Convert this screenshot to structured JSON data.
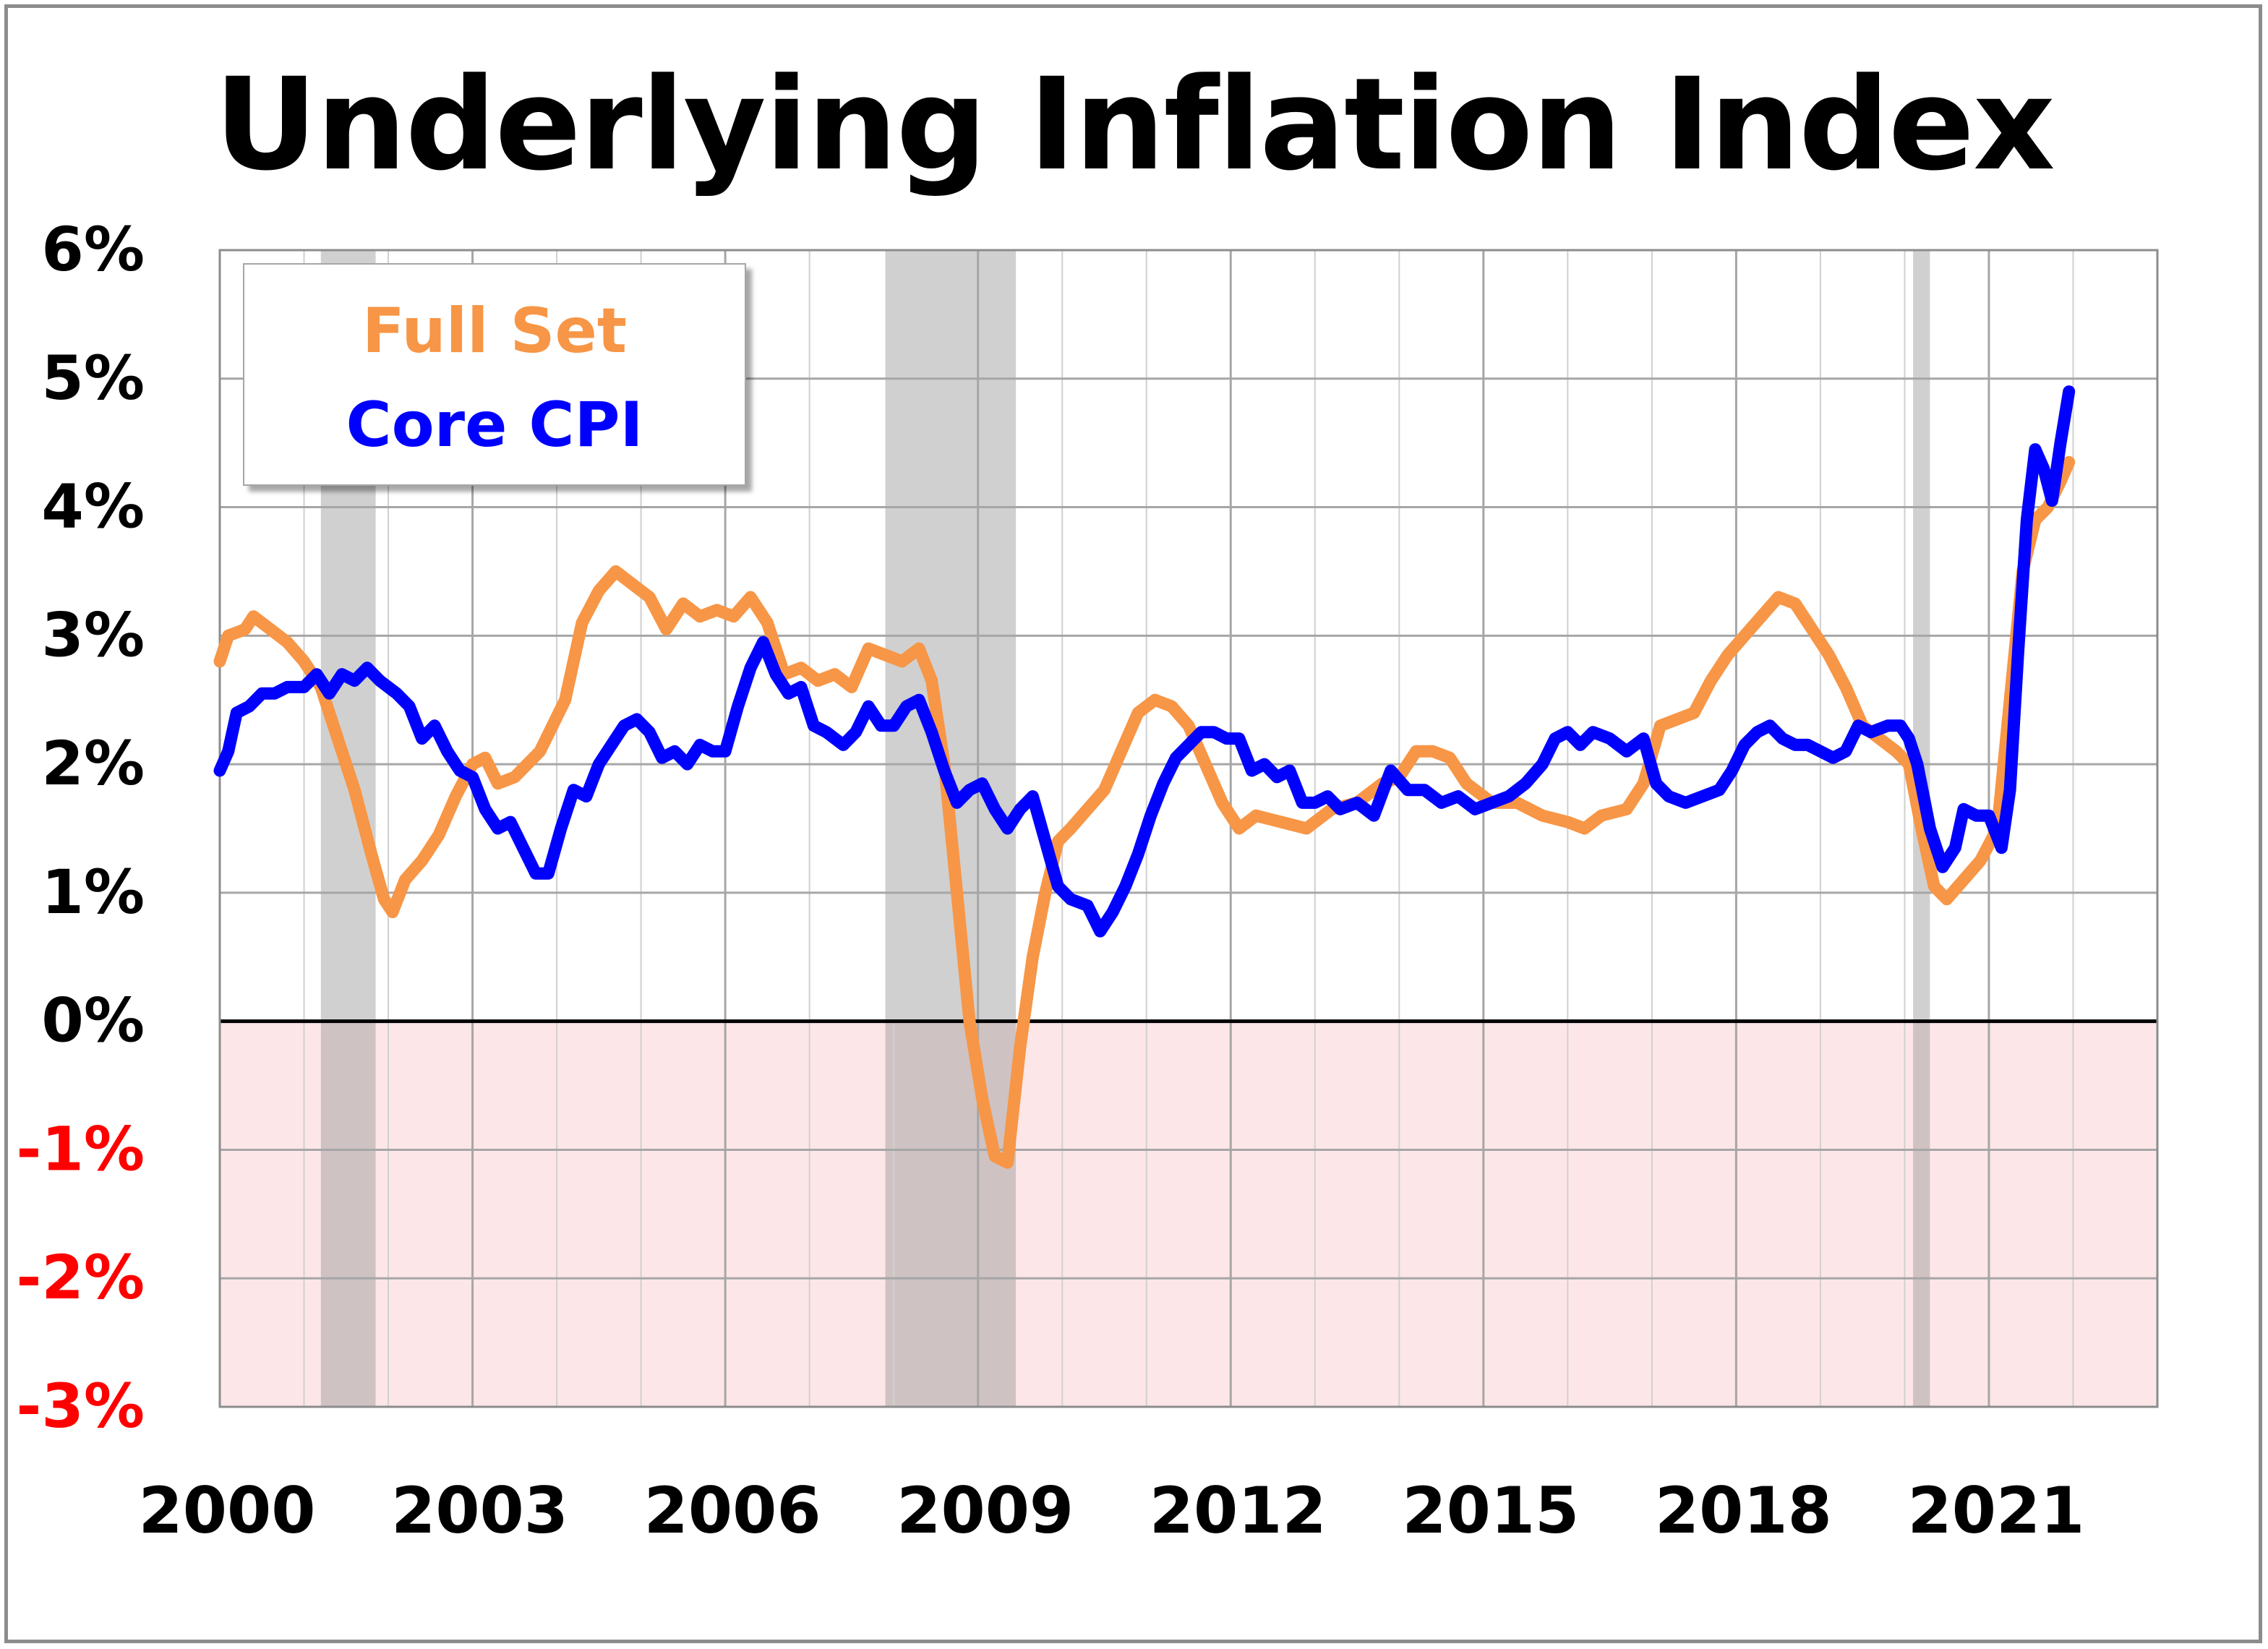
{
  "chart_data": {
    "type": "line",
    "title": "Underlying Inflation Index",
    "xlabel": "",
    "ylabel": "",
    "xlim": [
      2000,
      2023
    ],
    "ylim": [
      -3,
      6
    ],
    "x_ticks": [
      "2000",
      "2003",
      "2006",
      "2009",
      "2012",
      "2015",
      "2018",
      "2021"
    ],
    "y_ticks": [
      "6%",
      "5%",
      "4%",
      "3%",
      "2%",
      "1%",
      "0%",
      "-1%",
      "-2%",
      "-3%"
    ],
    "y_tick_values": [
      6,
      5,
      4,
      3,
      2,
      1,
      0,
      -1,
      -2,
      -3
    ],
    "grid": true,
    "legend_position": "top-left",
    "negative_region_color": "#fde6e8",
    "negative_label_color": "#ff0000",
    "recessions": [
      [
        2001.2,
        2001.85
      ],
      [
        2007.9,
        2009.45
      ],
      [
        2020.1,
        2020.3
      ]
    ],
    "series": [
      {
        "name": "Full Set",
        "color": "#f79646",
        "points": [
          [
            2000.0,
            2.8
          ],
          [
            2000.1,
            3.0
          ],
          [
            2000.3,
            3.05
          ],
          [
            2000.4,
            3.15
          ],
          [
            2000.6,
            3.05
          ],
          [
            2000.8,
            2.95
          ],
          [
            2001.0,
            2.8
          ],
          [
            2001.2,
            2.6
          ],
          [
            2001.4,
            2.2
          ],
          [
            2001.6,
            1.8
          ],
          [
            2001.8,
            1.3
          ],
          [
            2001.95,
            0.95
          ],
          [
            2002.05,
            0.85
          ],
          [
            2002.2,
            1.1
          ],
          [
            2002.4,
            1.25
          ],
          [
            2002.6,
            1.45
          ],
          [
            2002.8,
            1.75
          ],
          [
            2003.0,
            2.0
          ],
          [
            2003.15,
            2.05
          ],
          [
            2003.3,
            1.85
          ],
          [
            2003.5,
            1.9
          ],
          [
            2003.8,
            2.1
          ],
          [
            2004.1,
            2.5
          ],
          [
            2004.3,
            3.1
          ],
          [
            2004.5,
            3.35
          ],
          [
            2004.7,
            3.5
          ],
          [
            2004.9,
            3.4
          ],
          [
            2005.1,
            3.3
          ],
          [
            2005.3,
            3.05
          ],
          [
            2005.5,
            3.25
          ],
          [
            2005.7,
            3.15
          ],
          [
            2005.9,
            3.2
          ],
          [
            2006.1,
            3.15
          ],
          [
            2006.3,
            3.3
          ],
          [
            2006.5,
            3.1
          ],
          [
            2006.7,
            2.7
          ],
          [
            2006.9,
            2.75
          ],
          [
            2007.1,
            2.65
          ],
          [
            2007.3,
            2.7
          ],
          [
            2007.5,
            2.6
          ],
          [
            2007.7,
            2.9
          ],
          [
            2007.9,
            2.85
          ],
          [
            2008.1,
            2.8
          ],
          [
            2008.3,
            2.9
          ],
          [
            2008.45,
            2.65
          ],
          [
            2008.6,
            2.0
          ],
          [
            2008.75,
            1.0
          ],
          [
            2008.9,
            0.0
          ],
          [
            2009.05,
            -0.6
          ],
          [
            2009.2,
            -1.05
          ],
          [
            2009.35,
            -1.1
          ],
          [
            2009.5,
            -0.2
          ],
          [
            2009.65,
            0.5
          ],
          [
            2009.8,
            1.0
          ],
          [
            2009.95,
            1.4
          ],
          [
            2010.1,
            1.5
          ],
          [
            2010.3,
            1.65
          ],
          [
            2010.5,
            1.8
          ],
          [
            2010.7,
            2.1
          ],
          [
            2010.9,
            2.4
          ],
          [
            2011.1,
            2.5
          ],
          [
            2011.3,
            2.45
          ],
          [
            2011.5,
            2.3
          ],
          [
            2011.7,
            2.0
          ],
          [
            2011.9,
            1.7
          ],
          [
            2012.1,
            1.5
          ],
          [
            2012.3,
            1.6
          ],
          [
            2012.6,
            1.55
          ],
          [
            2012.9,
            1.5
          ],
          [
            2013.2,
            1.65
          ],
          [
            2013.5,
            1.7
          ],
          [
            2013.8,
            1.85
          ],
          [
            2014.0,
            1.9
          ],
          [
            2014.2,
            2.1
          ],
          [
            2014.4,
            2.1
          ],
          [
            2014.6,
            2.05
          ],
          [
            2014.8,
            1.85
          ],
          [
            2015.1,
            1.7
          ],
          [
            2015.4,
            1.7
          ],
          [
            2015.7,
            1.6
          ],
          [
            2016.0,
            1.55
          ],
          [
            2016.2,
            1.5
          ],
          [
            2016.4,
            1.6
          ],
          [
            2016.7,
            1.65
          ],
          [
            2016.9,
            1.85
          ],
          [
            2017.1,
            2.3
          ],
          [
            2017.3,
            2.35
          ],
          [
            2017.5,
            2.4
          ],
          [
            2017.7,
            2.65
          ],
          [
            2017.9,
            2.85
          ],
          [
            2018.1,
            3.0
          ],
          [
            2018.3,
            3.15
          ],
          [
            2018.5,
            3.3
          ],
          [
            2018.7,
            3.25
          ],
          [
            2018.9,
            3.05
          ],
          [
            2019.1,
            2.85
          ],
          [
            2019.3,
            2.6
          ],
          [
            2019.5,
            2.3
          ],
          [
            2019.7,
            2.2
          ],
          [
            2019.9,
            2.1
          ],
          [
            2020.05,
            2.0
          ],
          [
            2020.2,
            1.5
          ],
          [
            2020.35,
            1.05
          ],
          [
            2020.5,
            0.95
          ],
          [
            2020.7,
            1.1
          ],
          [
            2020.9,
            1.25
          ],
          [
            2021.1,
            1.5
          ],
          [
            2021.25,
            2.5
          ],
          [
            2021.4,
            3.5
          ],
          [
            2021.55,
            3.9
          ],
          [
            2021.7,
            4.0
          ],
          [
            2021.85,
            4.2
          ],
          [
            2021.95,
            4.35
          ]
        ]
      },
      {
        "name": "Core CPI",
        "color": "#0000ff",
        "points": [
          [
            2000.0,
            1.95
          ],
          [
            2000.1,
            2.1
          ],
          [
            2000.2,
            2.4
          ],
          [
            2000.35,
            2.45
          ],
          [
            2000.5,
            2.55
          ],
          [
            2000.65,
            2.55
          ],
          [
            2000.8,
            2.6
          ],
          [
            2001.0,
            2.6
          ],
          [
            2001.15,
            2.7
          ],
          [
            2001.3,
            2.55
          ],
          [
            2001.45,
            2.7
          ],
          [
            2001.6,
            2.65
          ],
          [
            2001.75,
            2.75
          ],
          [
            2001.9,
            2.65
          ],
          [
            2002.1,
            2.55
          ],
          [
            2002.25,
            2.45
          ],
          [
            2002.4,
            2.2
          ],
          [
            2002.55,
            2.3
          ],
          [
            2002.7,
            2.1
          ],
          [
            2002.85,
            1.95
          ],
          [
            2003.0,
            1.9
          ],
          [
            2003.15,
            1.65
          ],
          [
            2003.3,
            1.5
          ],
          [
            2003.45,
            1.55
          ],
          [
            2003.6,
            1.35
          ],
          [
            2003.75,
            1.15
          ],
          [
            2003.9,
            1.15
          ],
          [
            2004.05,
            1.5
          ],
          [
            2004.2,
            1.8
          ],
          [
            2004.35,
            1.75
          ],
          [
            2004.5,
            2.0
          ],
          [
            2004.65,
            2.15
          ],
          [
            2004.8,
            2.3
          ],
          [
            2004.95,
            2.35
          ],
          [
            2005.1,
            2.25
          ],
          [
            2005.25,
            2.05
          ],
          [
            2005.4,
            2.1
          ],
          [
            2005.55,
            2.0
          ],
          [
            2005.7,
            2.15
          ],
          [
            2005.85,
            2.1
          ],
          [
            2006.0,
            2.1
          ],
          [
            2006.15,
            2.45
          ],
          [
            2006.3,
            2.75
          ],
          [
            2006.45,
            2.95
          ],
          [
            2006.6,
            2.7
          ],
          [
            2006.75,
            2.55
          ],
          [
            2006.9,
            2.6
          ],
          [
            2007.05,
            2.3
          ],
          [
            2007.2,
            2.25
          ],
          [
            2007.4,
            2.15
          ],
          [
            2007.55,
            2.25
          ],
          [
            2007.7,
            2.45
          ],
          [
            2007.85,
            2.3
          ],
          [
            2008.0,
            2.3
          ],
          [
            2008.15,
            2.45
          ],
          [
            2008.3,
            2.5
          ],
          [
            2008.45,
            2.25
          ],
          [
            2008.6,
            1.95
          ],
          [
            2008.75,
            1.7
          ],
          [
            2008.9,
            1.8
          ],
          [
            2009.05,
            1.85
          ],
          [
            2009.2,
            1.65
          ],
          [
            2009.35,
            1.5
          ],
          [
            2009.5,
            1.65
          ],
          [
            2009.65,
            1.75
          ],
          [
            2009.8,
            1.4
          ],
          [
            2009.95,
            1.05
          ],
          [
            2010.1,
            0.95
          ],
          [
            2010.3,
            0.9
          ],
          [
            2010.45,
            0.7
          ],
          [
            2010.6,
            0.85
          ],
          [
            2010.75,
            1.05
          ],
          [
            2010.9,
            1.3
          ],
          [
            2011.05,
            1.6
          ],
          [
            2011.2,
            1.85
          ],
          [
            2011.35,
            2.05
          ],
          [
            2011.5,
            2.15
          ],
          [
            2011.65,
            2.25
          ],
          [
            2011.8,
            2.25
          ],
          [
            2011.95,
            2.2
          ],
          [
            2012.1,
            2.2
          ],
          [
            2012.25,
            1.95
          ],
          [
            2012.4,
            2.0
          ],
          [
            2012.55,
            1.9
          ],
          [
            2012.7,
            1.95
          ],
          [
            2012.85,
            1.7
          ],
          [
            2013.0,
            1.7
          ],
          [
            2013.15,
            1.75
          ],
          [
            2013.3,
            1.65
          ],
          [
            2013.5,
            1.7
          ],
          [
            2013.7,
            1.6
          ],
          [
            2013.9,
            1.95
          ],
          [
            2014.1,
            1.8
          ],
          [
            2014.3,
            1.8
          ],
          [
            2014.5,
            1.7
          ],
          [
            2014.7,
            1.75
          ],
          [
            2014.9,
            1.65
          ],
          [
            2015.1,
            1.7
          ],
          [
            2015.3,
            1.75
          ],
          [
            2015.5,
            1.85
          ],
          [
            2015.7,
            2.0
          ],
          [
            2015.85,
            2.2
          ],
          [
            2016.0,
            2.25
          ],
          [
            2016.15,
            2.15
          ],
          [
            2016.3,
            2.25
          ],
          [
            2016.5,
            2.2
          ],
          [
            2016.7,
            2.1
          ],
          [
            2016.9,
            2.2
          ],
          [
            2017.05,
            1.85
          ],
          [
            2017.2,
            1.75
          ],
          [
            2017.4,
            1.7
          ],
          [
            2017.6,
            1.75
          ],
          [
            2017.8,
            1.8
          ],
          [
            2017.95,
            1.95
          ],
          [
            2018.1,
            2.15
          ],
          [
            2018.25,
            2.25
          ],
          [
            2018.4,
            2.3
          ],
          [
            2018.55,
            2.2
          ],
          [
            2018.7,
            2.15
          ],
          [
            2018.85,
            2.15
          ],
          [
            2019.0,
            2.1
          ],
          [
            2019.15,
            2.05
          ],
          [
            2019.3,
            2.1
          ],
          [
            2019.45,
            2.3
          ],
          [
            2019.6,
            2.25
          ],
          [
            2019.8,
            2.3
          ],
          [
            2019.95,
            2.3
          ],
          [
            2020.05,
            2.2
          ],
          [
            2020.15,
            2.0
          ],
          [
            2020.3,
            1.5
          ],
          [
            2020.45,
            1.2
          ],
          [
            2020.6,
            1.35
          ],
          [
            2020.7,
            1.65
          ],
          [
            2020.85,
            1.6
          ],
          [
            2021.0,
            1.6
          ],
          [
            2021.15,
            1.35
          ],
          [
            2021.25,
            1.8
          ],
          [
            2021.35,
            2.9
          ],
          [
            2021.45,
            3.9
          ],
          [
            2021.55,
            4.45
          ],
          [
            2021.65,
            4.3
          ],
          [
            2021.75,
            4.05
          ],
          [
            2021.85,
            4.5
          ],
          [
            2021.95,
            4.9
          ]
        ]
      }
    ]
  },
  "legend": {
    "full_set_label": "Full Set",
    "core_cpi_label": "Core CPI"
  }
}
